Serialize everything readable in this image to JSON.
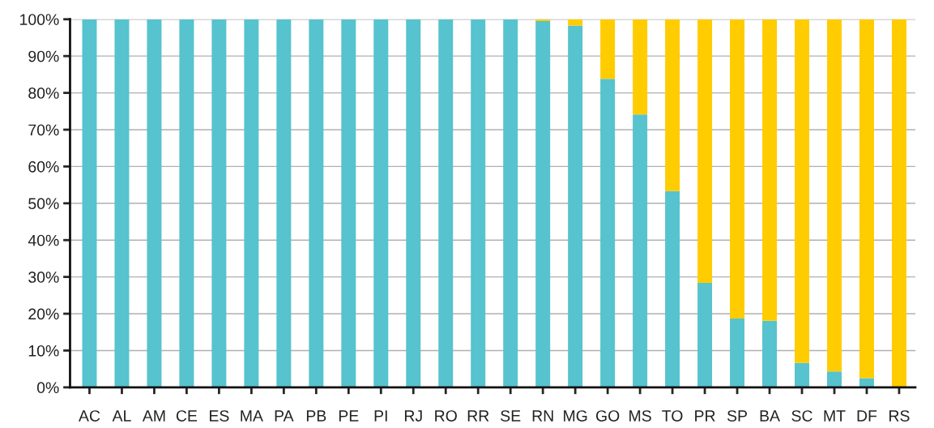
{
  "chart_data": {
    "type": "bar",
    "stacked": true,
    "categories": [
      "AC",
      "AL",
      "AM",
      "CE",
      "ES",
      "MA",
      "PA",
      "PB",
      "PE",
      "PI",
      "RJ",
      "RO",
      "RR",
      "SE",
      "RN",
      "MG",
      "GO",
      "MS",
      "TO",
      "PR",
      "SP",
      "BA",
      "SC",
      "MT",
      "DF",
      "RS"
    ],
    "series": [
      {
        "color": "#56c3cf",
        "values": [
          100,
          100,
          100,
          100,
          100,
          100,
          100,
          100,
          100,
          100,
          100,
          100,
          100,
          100,
          99.5,
          98.3,
          83.8,
          74.1,
          53.3,
          28.4,
          18.7,
          18.1,
          6.6,
          4.3,
          2.5,
          null
        ]
      },
      {
        "color": "#ffcc00",
        "values": [
          null,
          null,
          null,
          null,
          null,
          null,
          null,
          null,
          null,
          null,
          null,
          null,
          null,
          null,
          0.5,
          1.7,
          16.2,
          25.9,
          46.7,
          71.6,
          81.3,
          81.9,
          93.4,
          95.7,
          97.5,
          100
        ]
      }
    ],
    "ylim": [
      0,
      100
    ],
    "yticks": [
      {
        "value": 0,
        "label": "0%"
      },
      {
        "value": 10,
        "label": "10%"
      },
      {
        "value": 20,
        "label": "20%"
      },
      {
        "value": 30,
        "label": "30%"
      },
      {
        "value": 40,
        "label": "40%"
      },
      {
        "value": 50,
        "label": "50%"
      },
      {
        "value": 60,
        "label": "60%"
      },
      {
        "value": 70,
        "label": "70%"
      },
      {
        "value": 80,
        "label": "80%"
      },
      {
        "value": 90,
        "label": "90%"
      },
      {
        "value": 100,
        "label": "100%"
      }
    ],
    "grid": "y"
  }
}
